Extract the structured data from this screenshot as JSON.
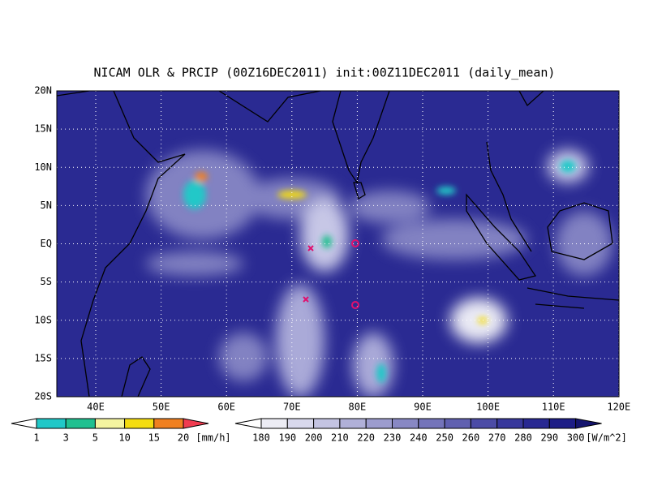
{
  "title": "NICAM OLR & PRCIP (00Z16DEC2011) init:00Z11DEC2011 (daily_mean)",
  "lat_labels": [
    "20N",
    "15N",
    "10N",
    "5N",
    "EQ",
    "5S",
    "10S",
    "15S",
    "20S"
  ],
  "lon_labels": [
    "40E",
    "50E",
    "60E",
    "70E",
    "80E",
    "90E",
    "100E",
    "110E",
    "120E"
  ],
  "precip_colorbar": {
    "labels": [
      "1",
      "3",
      "5",
      "10",
      "15",
      "20"
    ],
    "unit": "[mm/h]",
    "colors": [
      "#ffffff",
      "#20c8c8",
      "#20c090",
      "#f4f4a0",
      "#f4dc10",
      "#f08020",
      "#f03c50"
    ]
  },
  "olr_colorbar": {
    "labels": [
      "180",
      "190",
      "200",
      "210",
      "220",
      "230",
      "240",
      "250",
      "260",
      "270",
      "280",
      "290",
      "300"
    ],
    "unit": "[W/m^2]",
    "colors": [
      "#ffffff",
      "#ececf4",
      "#d8d8ec",
      "#c4c4e2",
      "#b0b0d8",
      "#9c9cce",
      "#8888c4",
      "#7474ba",
      "#6060b0",
      "#4c4ca6",
      "#38389c",
      "#282892",
      "#1c1c86",
      "#14146e"
    ]
  }
}
